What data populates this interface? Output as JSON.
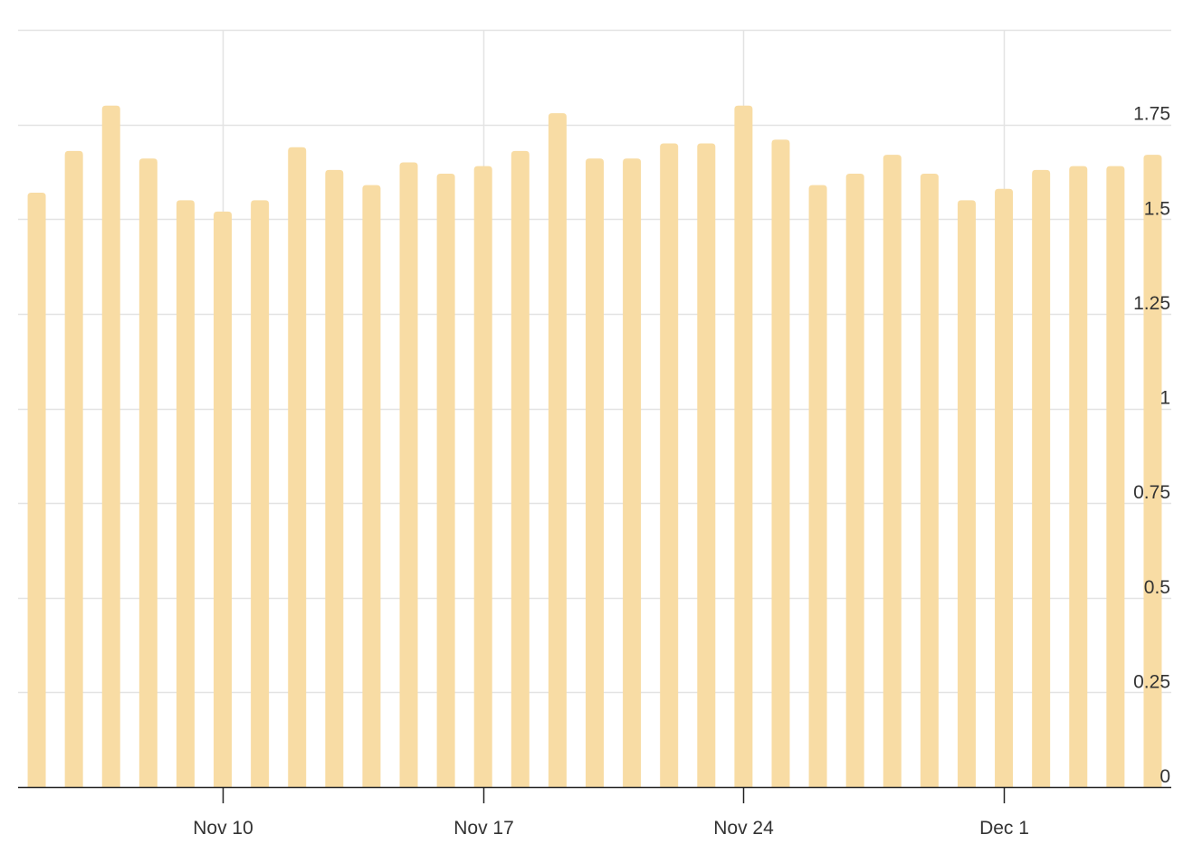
{
  "chart_data": {
    "type": "bar",
    "colors": {
      "bar": "#f8dca4",
      "grid": "#e3e3e3",
      "axis": "#222222",
      "text": "#333333"
    },
    "grid": true,
    "y_axis_position": "right",
    "ylim": [
      0,
      2.0
    ],
    "y_ticks": [
      0,
      0.25,
      0.5,
      0.75,
      1,
      1.25,
      1.5,
      1.75
    ],
    "y_tick_labels": [
      "0",
      "0.25",
      "0.5",
      "0.75",
      "1",
      "1.25",
      "1.5",
      "1.75"
    ],
    "x_ticks": [
      {
        "date": "2023-11-10",
        "label": "Nov 10"
      },
      {
        "date": "2023-11-17",
        "label": "Nov 17"
      },
      {
        "date": "2023-11-24",
        "label": "Nov 24"
      },
      {
        "date": "2023-12-01",
        "label": "Dec 1"
      }
    ],
    "xlim": [
      "2023-11-04T12:00",
      "2023-12-05T12:00"
    ],
    "categories": [
      "2023-11-05",
      "2023-11-06",
      "2023-11-07",
      "2023-11-08",
      "2023-11-09",
      "2023-11-10",
      "2023-11-11",
      "2023-11-12",
      "2023-11-13",
      "2023-11-14",
      "2023-11-15",
      "2023-11-16",
      "2023-11-17",
      "2023-11-18",
      "2023-11-19",
      "2023-11-20",
      "2023-11-21",
      "2023-11-22",
      "2023-11-23",
      "2023-11-24",
      "2023-11-25",
      "2023-11-26",
      "2023-11-27",
      "2023-11-28",
      "2023-11-29",
      "2023-11-30",
      "2023-12-01",
      "2023-12-02",
      "2023-12-03",
      "2023-12-04",
      "2023-12-05"
    ],
    "values": [
      1.57,
      1.68,
      1.8,
      1.66,
      1.55,
      1.52,
      1.55,
      1.69,
      1.63,
      1.59,
      1.65,
      1.62,
      1.64,
      1.68,
      1.78,
      1.66,
      1.66,
      1.7,
      1.7,
      1.8,
      1.71,
      1.59,
      1.62,
      1.67,
      1.62,
      1.55,
      1.58,
      1.63,
      1.64,
      1.64,
      1.67
    ]
  }
}
